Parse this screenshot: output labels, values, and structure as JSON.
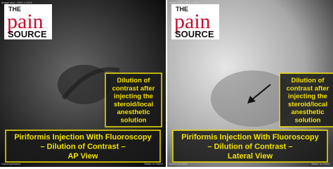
{
  "panels": [
    {
      "logo": {
        "the": "THE",
        "pain": "pain",
        "source": "SOURCE"
      },
      "meta": {
        "top": "Image size: 1024 x 1024",
        "bottom": "Uncompressed",
        "bottom_right": "Made In OsiriX"
      },
      "callout": [
        "Dilution of",
        "contrast after",
        "injecting the",
        "steroid/local",
        "anesthetic",
        "solution"
      ],
      "caption": [
        "Piriformis Injection With Fluoroscopy",
        "– Dilution of Contrast –",
        "AP View"
      ]
    },
    {
      "logo": {
        "the": "THE",
        "pain": "pain",
        "source": "SOURCE"
      },
      "meta": {
        "top": "Image size: 1024 x 1024",
        "bottom": "Uncompressed",
        "bottom_right": "Made In OsiriX"
      },
      "callout": [
        "Dilution of",
        "contrast after",
        "injecting the",
        "steroid/local",
        "anesthetic",
        "solution"
      ],
      "caption": [
        "Piriformis Injection With Fluoroscopy",
        "– Dilution of Contrast –",
        "Lateral View"
      ]
    }
  ]
}
